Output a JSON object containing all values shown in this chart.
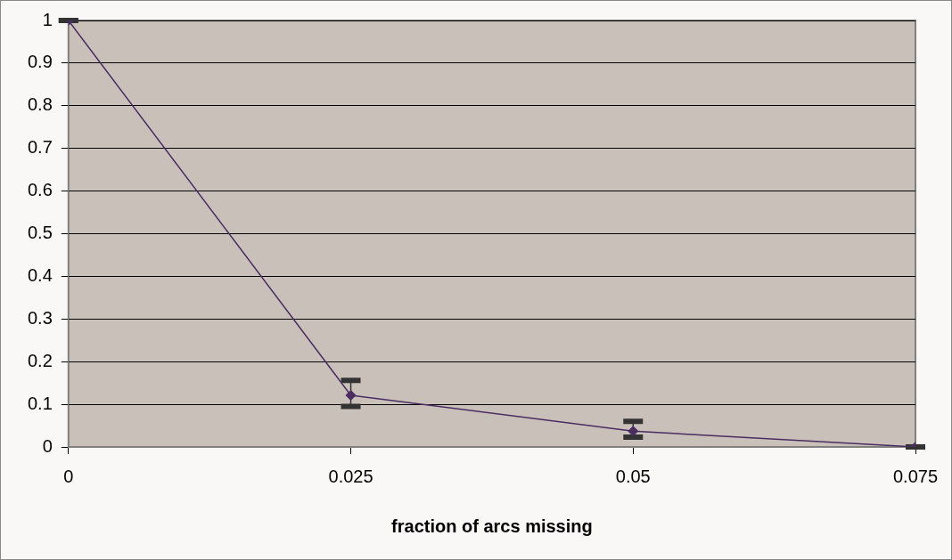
{
  "chart_data": {
    "type": "line",
    "xlabel": "fraction of arcs missing",
    "x": [
      0,
      0.025,
      0.05,
      0.075
    ],
    "series": [
      {
        "color": "#4b2d62",
        "values": [
          1,
          0.121,
          0.037,
          0
        ],
        "errors": [
          0,
          [
            0.095,
            0.156
          ],
          [
            0.023,
            0.06
          ],
          0
        ]
      }
    ],
    "xlim": [
      0,
      0.075
    ],
    "xticks": [
      0,
      0.025,
      0.05,
      0.075
    ],
    "ylim": [
      0,
      1
    ],
    "yticks": [
      0,
      0.1,
      0.2,
      0.3,
      0.4,
      0.5,
      0.6,
      0.7,
      0.8,
      0.9,
      1
    ],
    "grid": "y",
    "legend": false,
    "marker": "diamond",
    "line_style": "solid"
  }
}
